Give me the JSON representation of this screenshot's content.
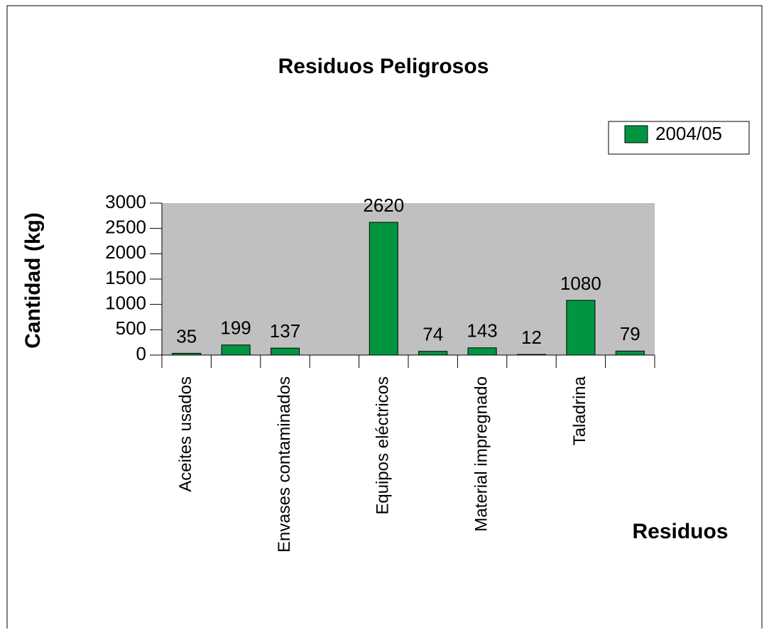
{
  "chart_data": {
    "type": "bar",
    "title": "Residuos Peligrosos",
    "x_label": "Residuos",
    "y_label": "Cantidad (kg)",
    "categories": [
      "Aceites usados",
      null,
      "Envases contaminados",
      null,
      "Equipos eléctricos",
      null,
      "Material impregnado",
      null,
      "Taladrina",
      null
    ],
    "series": [
      {
        "name": "2004/05",
        "color": "#00963f",
        "values": [
          35,
          199,
          137,
          null,
          2620,
          74,
          143,
          12,
          1080,
          79
        ]
      }
    ],
    "ylim": [
      0,
      3000
    ],
    "yticks": [
      0,
      500,
      1000,
      1500,
      2000,
      2500,
      3000
    ],
    "legend": "upper right",
    "plot_background": "#c0c0c0"
  }
}
